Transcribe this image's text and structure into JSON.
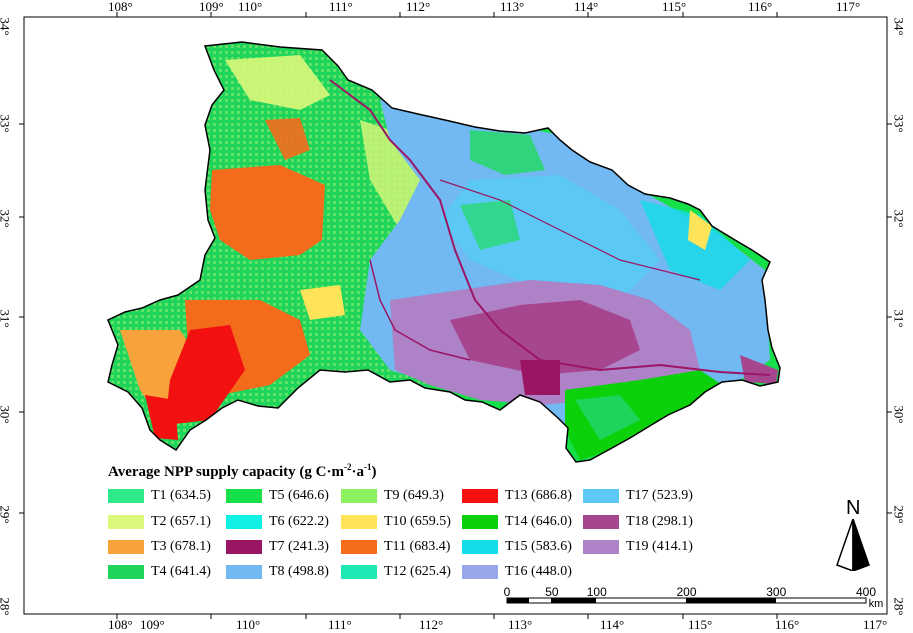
{
  "map": {
    "top_axis_labels": [
      "108°",
      "109°",
      "110°",
      "111°",
      "112°",
      "113°",
      "114°",
      "115°",
      "116°",
      "117°"
    ],
    "bottom_axis_labels": [
      "108°",
      "109°",
      "110°",
      "111°",
      "112°",
      "113°",
      "114°",
      "115°",
      "116°",
      "117°"
    ],
    "left_axis_labels": [
      "34°",
      "33°",
      "32°",
      "31°",
      "30°",
      "29°",
      "28°"
    ],
    "right_axis_labels": [
      "34°",
      "33°",
      "32°",
      "31°",
      "30°",
      "29°",
      "28°"
    ]
  },
  "legend": {
    "title_text": "Average NPP supply capacity (g C·m",
    "title_sup1": "-2",
    "title_mid": "·a",
    "title_sup2": "-1",
    "title_end": ")",
    "items": [
      {
        "label": "T1 (634.5)",
        "color": "#2ee88a"
      },
      {
        "label": "T2 (657.1)",
        "color": "#dcf87a"
      },
      {
        "label": "T3 (678.1)",
        "color": "#f7a23b"
      },
      {
        "label": "T4 (641.4)",
        "color": "#1fd45a"
      },
      {
        "label": "T5 (646.6)",
        "color": "#15e04a"
      },
      {
        "label": "T6 (622.2)",
        "color": "#10f0e4"
      },
      {
        "label": "T7 (241.3)",
        "color": "#9b1565"
      },
      {
        "label": "T8 (498.8)",
        "color": "#72b8f2"
      },
      {
        "label": "T9 (649.3)",
        "color": "#8ef160"
      },
      {
        "label": "T10 (659.5)",
        "color": "#ffe358"
      },
      {
        "label": "T11 (683.4)",
        "color": "#f56b1c"
      },
      {
        "label": "T12 (625.4)",
        "color": "#1de8b4"
      },
      {
        "label": "T13 (686.8)",
        "color": "#f21010"
      },
      {
        "label": "T14 (646.0)",
        "color": "#0ad10a"
      },
      {
        "label": "T15 (583.6)",
        "color": "#14dce8"
      },
      {
        "label": "T16 (448.0)",
        "color": "#9aa6ea"
      },
      {
        "label": "T17 (523.9)",
        "color": "#5cc8f5"
      },
      {
        "label": "T18 (298.1)",
        "color": "#a6468e"
      },
      {
        "label": "T19 (414.1)",
        "color": "#ae82c6"
      }
    ]
  },
  "north_arrow": {
    "label": "N"
  },
  "scale_bar": {
    "ticks": [
      "0",
      "50",
      "100",
      "200",
      "300",
      "400"
    ],
    "tick_values": [
      0,
      50,
      100,
      200,
      300,
      400
    ],
    "unit": "km"
  }
}
